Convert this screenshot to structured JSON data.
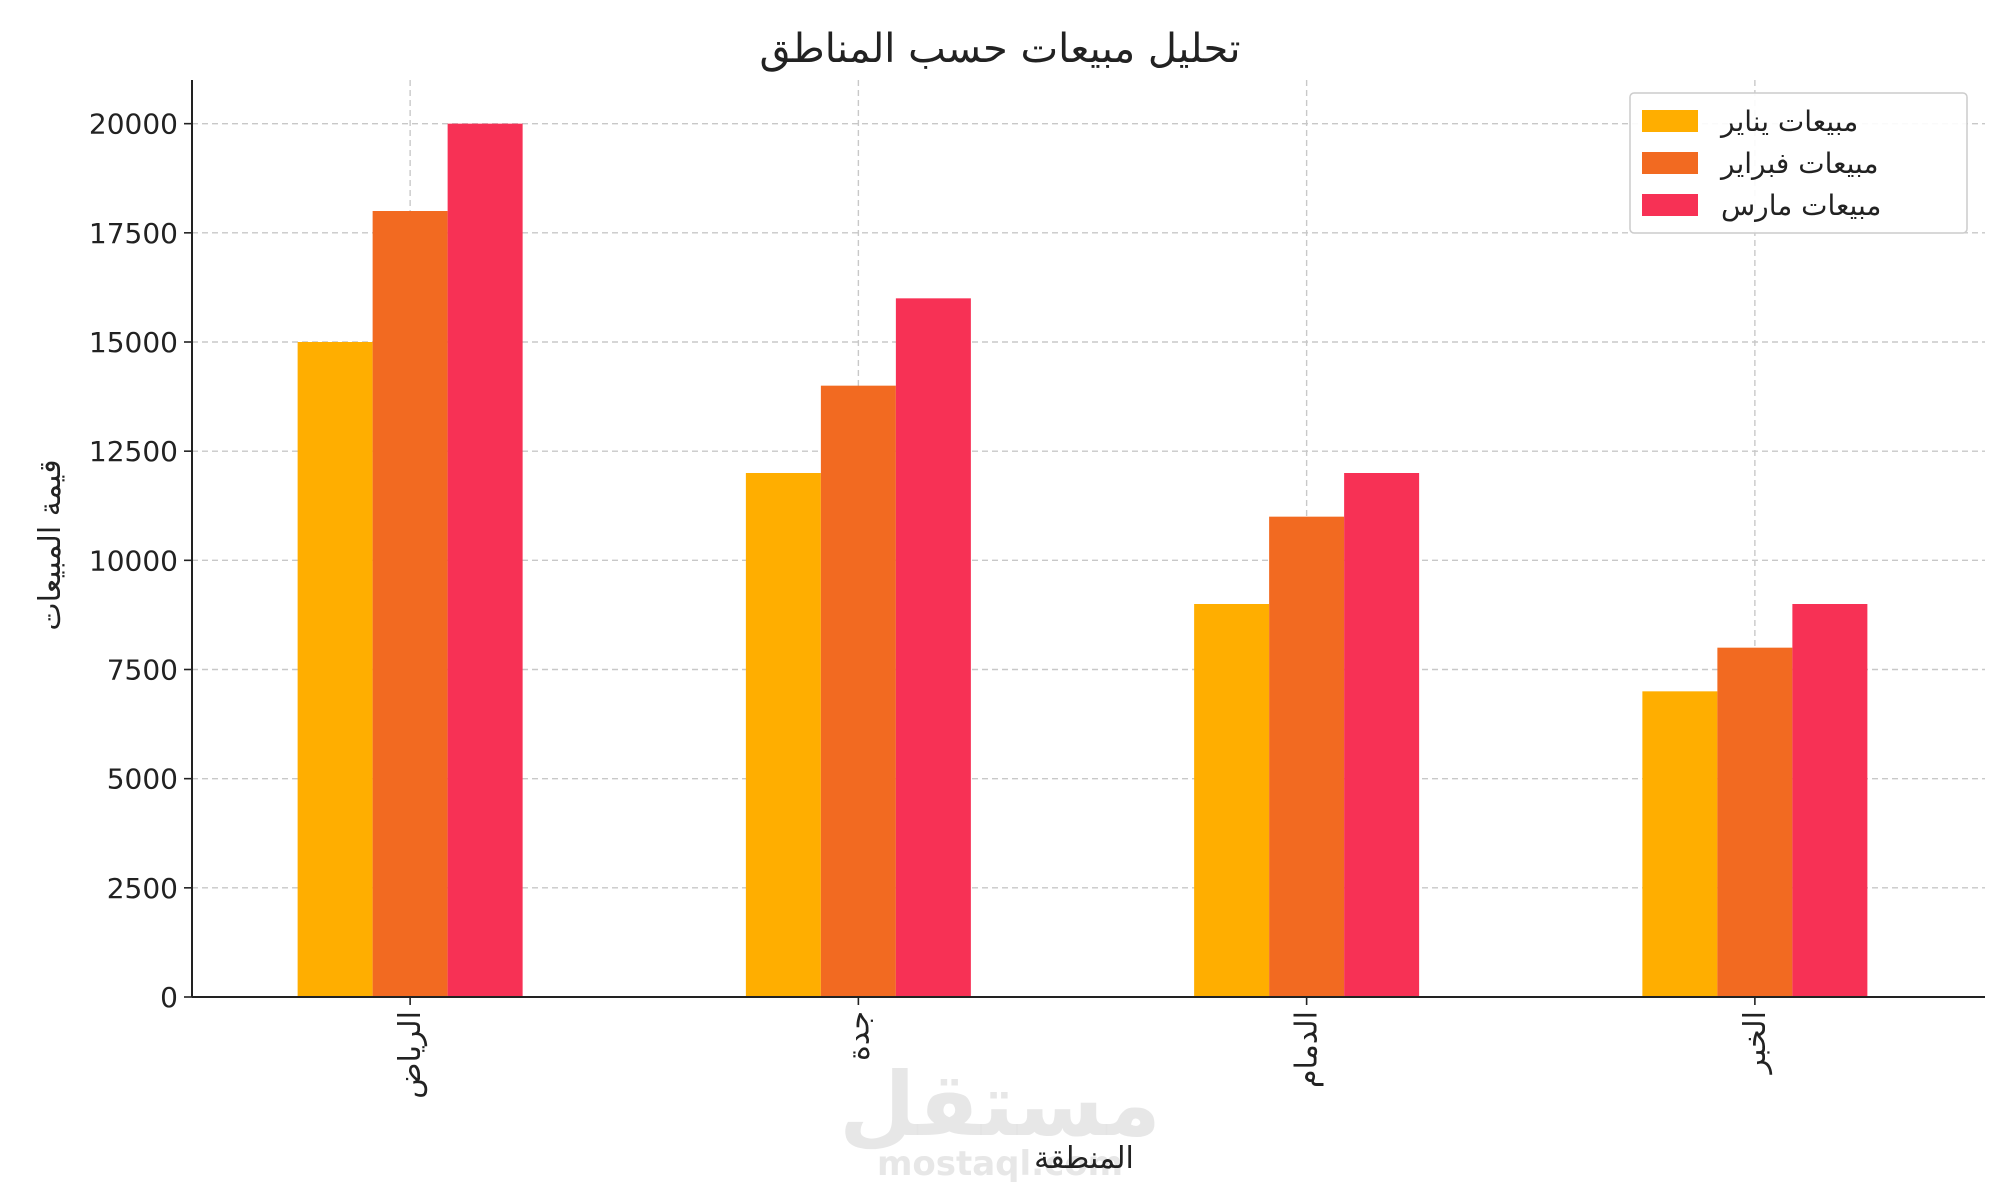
{
  "chart_data": {
    "type": "bar",
    "title": "تحليل مبيعات حسب المناطق",
    "xlabel": "المنطقة",
    "ylabel": "قيمة المبيعات",
    "categories": [
      "الرياض",
      "جدة",
      "الدمام",
      "الخبر"
    ],
    "series": [
      {
        "name": "مبيعات يناير",
        "color": "#FFAE00",
        "values": [
          15000,
          12000,
          9000,
          7000
        ]
      },
      {
        "name": "مبيعات فبراير",
        "color": "#F26A21",
        "values": [
          18000,
          14000,
          11000,
          8000
        ]
      },
      {
        "name": "مبيعات مارس",
        "color": "#F73155",
        "values": [
          20000,
          16000,
          12000,
          9000
        ]
      }
    ],
    "ylim": [
      0,
      21000
    ],
    "yticks": [
      0,
      2500,
      5000,
      7500,
      10000,
      12500,
      15000,
      17500,
      20000
    ],
    "grid": true,
    "legend_position": "top-right"
  },
  "watermark": {
    "logo_text": "مستقل",
    "site_text": "mostaql.com"
  }
}
